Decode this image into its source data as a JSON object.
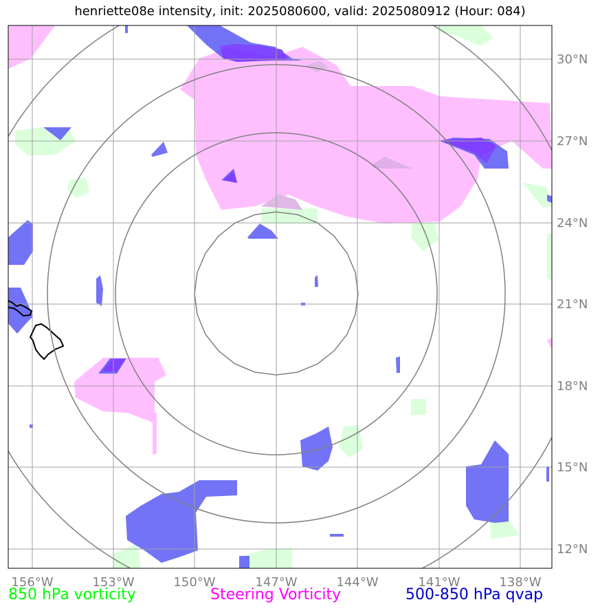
{
  "title": "henriette08e intensity, init: 2025080600, valid: 2025080912 (Hour: 084)",
  "lon_ticks": [
    "156°W",
    "153°W",
    "150°W",
    "147°W",
    "144°W",
    "141°W",
    "138°W"
  ],
  "lat_ticks": [
    "30°N",
    "27°N",
    "24°N",
    "21°N",
    "18°N",
    "15°N",
    "12°N"
  ],
  "legend": {
    "green": "850 hPa vorticity",
    "magenta": "Steering Vorticity",
    "blue": "500-850 hPa qvap"
  },
  "colors": {
    "green": "#00ff00",
    "magenta": "#ff00ff",
    "blue": "#0000cd"
  },
  "map": {
    "lon_range": [
      "157°W",
      "137°W"
    ],
    "lat_range": [
      "11.3°N",
      "31.2°N"
    ],
    "storm_center": [
      "147°W",
      "21.4°N"
    ]
  }
}
